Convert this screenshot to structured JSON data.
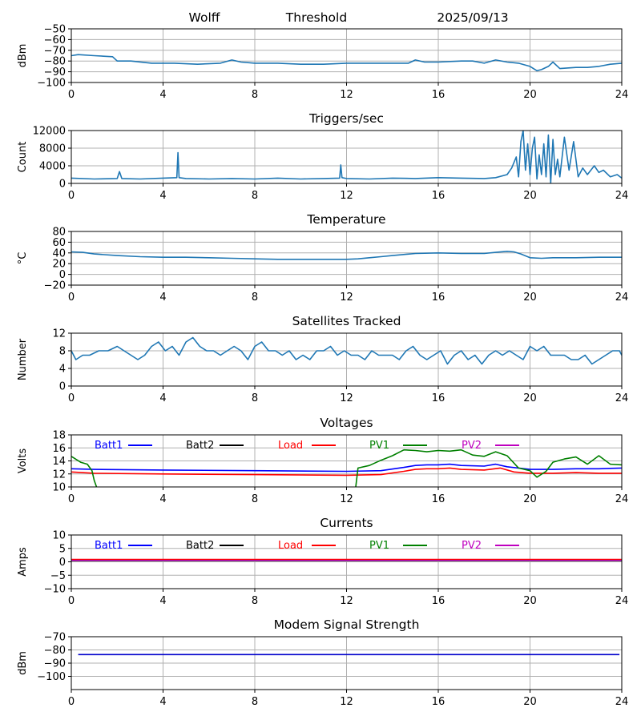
{
  "header": {
    "station": "Wolff",
    "mode": "Threshold",
    "date": "2025/09/13"
  },
  "colors": {
    "series_default": "#1f77b4",
    "batt1": "#0000ff",
    "batt2": "#000000",
    "load": "#ff0000",
    "pv1": "#008000",
    "pv2": "#bf00bf",
    "modem": "#0000cc",
    "grid": "#b0b0b0"
  },
  "chart_data": [
    {
      "id": "threshold",
      "type": "line",
      "title": "",
      "ylabel": "dBm",
      "xlim": [
        0,
        24
      ],
      "ylim": [
        -100,
        -50
      ],
      "xticks": [
        0,
        4,
        8,
        12,
        16,
        20,
        24
      ],
      "yticks": [
        -50,
        -60,
        -70,
        -80,
        -90,
        -100
      ],
      "yticklabels": [
        "−50",
        "−60",
        "−70",
        "−80",
        "−90",
        "−100"
      ],
      "series": [
        {
          "color": "#1f77b4",
          "x": [
            0,
            0.3,
            1,
            1.8,
            2.0,
            2.6,
            3.5,
            4.5,
            5.5,
            6.5,
            7.0,
            7.4,
            8.0,
            9.0,
            10.0,
            11.0,
            12.0,
            13.0,
            14.0,
            14.7,
            15.0,
            15.4,
            16.0,
            17.0,
            17.5,
            18.0,
            18.5,
            19.0,
            19.5,
            20.0,
            20.3,
            20.5,
            20.8,
            21.0,
            21.3,
            22.0,
            22.5,
            23.0,
            23.5,
            24.0
          ],
          "y": [
            -75,
            -74,
            -75,
            -76,
            -80,
            -80,
            -82,
            -82,
            -83,
            -82,
            -79,
            -81,
            -82,
            -82,
            -83,
            -83,
            -82,
            -82,
            -82,
            -82,
            -79,
            -81,
            -81,
            -80,
            -80,
            -82,
            -79,
            -81,
            -82,
            -85,
            -89,
            -88,
            -85,
            -81,
            -87,
            -86,
            -86,
            -85,
            -83,
            -82
          ]
        }
      ]
    },
    {
      "id": "triggers",
      "type": "line",
      "title": "Triggers/sec",
      "ylabel": "Count",
      "xlim": [
        0,
        24
      ],
      "ylim": [
        0,
        12000
      ],
      "xticks": [
        0,
        4,
        8,
        12,
        16,
        20,
        24
      ],
      "yticks": [
        0,
        4000,
        8000,
        12000
      ],
      "series": [
        {
          "color": "#1f77b4",
          "x": [
            0,
            1,
            2,
            2.1,
            2.2,
            3,
            4,
            4.6,
            4.65,
            4.7,
            5,
            6,
            7,
            8,
            9,
            10,
            11,
            11.7,
            11.75,
            11.8,
            12,
            13,
            14,
            15,
            16,
            17,
            18,
            18.5,
            19,
            19.2,
            19.4,
            19.5,
            19.6,
            19.7,
            19.8,
            19.9,
            20.0,
            20.1,
            20.2,
            20.3,
            20.4,
            20.5,
            20.6,
            20.7,
            20.8,
            20.9,
            21.0,
            21.1,
            21.2,
            21.3,
            21.5,
            21.7,
            21.9,
            22.1,
            22.3,
            22.5,
            22.8,
            23.0,
            23.2,
            23.5,
            23.8,
            24
          ],
          "y": [
            1200,
            1000,
            1100,
            2700,
            1100,
            1000,
            1200,
            1300,
            7000,
            1300,
            1100,
            1000,
            1100,
            1000,
            1200,
            1000,
            1100,
            1200,
            4200,
            1300,
            1100,
            1000,
            1200,
            1100,
            1300,
            1200,
            1100,
            1300,
            2000,
            3500,
            6000,
            1500,
            9500,
            12000,
            3000,
            9000,
            2000,
            8000,
            10500,
            1000,
            6500,
            2000,
            9000,
            1500,
            11000,
            0,
            10000,
            2000,
            5500,
            1500,
            10500,
            3000,
            9500,
            1500,
            3500,
            2000,
            4000,
            2500,
            3000,
            1500,
            2000,
            1200
          ]
        }
      ]
    },
    {
      "id": "temperature",
      "type": "line",
      "title": "Temperature",
      "ylabel": "°C",
      "xlim": [
        0,
        24
      ],
      "ylim": [
        -20,
        80
      ],
      "xticks": [
        0,
        4,
        8,
        12,
        16,
        20,
        24
      ],
      "yticks": [
        -20,
        0,
        20,
        40,
        60,
        80
      ],
      "yticklabels": [
        "−20",
        "0",
        "20",
        "40",
        "60",
        "80"
      ],
      "series": [
        {
          "color": "#1f77b4",
          "x": [
            0,
            0.5,
            1,
            2,
            3,
            4,
            5,
            6,
            7,
            8,
            9,
            10,
            11,
            12,
            12.5,
            13,
            13.5,
            14,
            15,
            16,
            17,
            18,
            18.5,
            19,
            19.3,
            19.6,
            20,
            20.5,
            21,
            22,
            23,
            24
          ],
          "y": [
            42,
            41,
            38,
            35,
            33,
            32,
            32,
            31,
            30,
            29,
            28,
            28,
            28,
            28,
            29,
            31,
            33,
            35,
            39,
            40,
            39,
            39,
            41,
            43,
            42,
            38,
            31,
            30,
            31,
            31,
            32,
            32
          ]
        }
      ]
    },
    {
      "id": "satellites",
      "type": "line",
      "title": "Satellites Tracked",
      "ylabel": "Number",
      "xlim": [
        0,
        24
      ],
      "ylim": [
        0,
        12
      ],
      "xticks": [
        0,
        4,
        8,
        12,
        16,
        20,
        24
      ],
      "yticks": [
        0,
        4,
        8,
        12
      ],
      "series": [
        {
          "color": "#1f77b4",
          "x": [
            0,
            0.2,
            0.5,
            0.8,
            1.2,
            1.6,
            2.0,
            2.3,
            2.6,
            2.9,
            3.2,
            3.5,
            3.8,
            4.1,
            4.4,
            4.7,
            5.0,
            5.3,
            5.6,
            5.9,
            6.2,
            6.5,
            6.8,
            7.1,
            7.4,
            7.7,
            8.0,
            8.3,
            8.6,
            8.9,
            9.2,
            9.5,
            9.8,
            10.1,
            10.4,
            10.7,
            11.0,
            11.3,
            11.6,
            11.9,
            12.2,
            12.5,
            12.8,
            13.1,
            13.4,
            13.7,
            14.0,
            14.3,
            14.6,
            14.9,
            15.2,
            15.5,
            15.8,
            16.1,
            16.4,
            16.7,
            17.0,
            17.3,
            17.6,
            17.9,
            18.2,
            18.5,
            18.8,
            19.1,
            19.4,
            19.7,
            20.0,
            20.3,
            20.6,
            20.9,
            21.2,
            21.5,
            21.8,
            22.1,
            22.4,
            22.7,
            23.0,
            23.3,
            23.6,
            23.9,
            24
          ],
          "y": [
            8,
            6,
            7,
            7,
            8,
            8,
            9,
            8,
            7,
            6,
            7,
            9,
            10,
            8,
            9,
            7,
            10,
            11,
            9,
            8,
            8,
            7,
            8,
            9,
            8,
            6,
            9,
            10,
            8,
            8,
            7,
            8,
            6,
            7,
            6,
            8,
            8,
            9,
            7,
            8,
            7,
            7,
            6,
            8,
            7,
            7,
            7,
            6,
            8,
            9,
            7,
            6,
            7,
            8,
            5,
            7,
            8,
            6,
            7,
            5,
            7,
            8,
            7,
            8,
            7,
            6,
            9,
            8,
            9,
            7,
            7,
            7,
            6,
            6,
            7,
            5,
            6,
            7,
            8,
            8,
            7
          ]
        }
      ]
    },
    {
      "id": "voltages",
      "type": "line",
      "title": "Voltages",
      "ylabel": "Volts",
      "xlim": [
        0,
        24
      ],
      "ylim": [
        10,
        18
      ],
      "xticks": [
        0,
        4,
        8,
        12,
        16,
        20,
        24
      ],
      "yticks": [
        10,
        12,
        14,
        16,
        18
      ],
      "series": [
        {
          "name": "Batt1",
          "color": "#0000ff",
          "x": [
            0,
            1,
            4,
            8,
            12,
            13.5,
            14.5,
            15,
            15.5,
            16,
            16.5,
            17,
            18,
            18.5,
            19,
            20,
            21,
            22,
            23,
            24
          ],
          "y": [
            12.8,
            12.7,
            12.6,
            12.5,
            12.4,
            12.5,
            13.0,
            13.3,
            13.4,
            13.4,
            13.5,
            13.3,
            13.2,
            13.5,
            13.1,
            12.7,
            12.7,
            12.8,
            12.8,
            12.9
          ]
        },
        {
          "name": "Batt2",
          "color": "#000000",
          "x": [],
          "y": []
        },
        {
          "name": "Load",
          "color": "#ff0000",
          "x": [
            0,
            1,
            4,
            8,
            12,
            13.5,
            14.5,
            15,
            15.5,
            16,
            16.5,
            17,
            18,
            18.7,
            19.3,
            20,
            21,
            22,
            23,
            24
          ],
          "y": [
            12.3,
            12.1,
            12.0,
            11.9,
            11.8,
            11.9,
            12.4,
            12.7,
            12.8,
            12.8,
            12.9,
            12.7,
            12.6,
            12.9,
            12.3,
            12.1,
            12.1,
            12.2,
            12.1,
            12.1
          ]
        },
        {
          "name": "PV1",
          "color": "#008000",
          "x": [
            0,
            0.4,
            0.7,
            0.9,
            1.0,
            1.1
          ],
          "y": [
            14.7,
            13.8,
            13.5,
            12.5,
            11.0,
            10.0
          ],
          "x2": [
            12.4,
            12.5,
            13.0,
            13.5,
            14.0,
            14.5,
            15.0,
            15.5,
            16.0,
            16.5,
            17.0,
            17.5,
            18.0,
            18.5,
            19.0,
            19.5,
            20.0,
            20.3,
            20.7,
            21.0,
            21.5,
            22.0,
            22.5,
            23.0,
            23.5,
            24.0
          ],
          "y2": [
            10.0,
            12.9,
            13.3,
            14.1,
            14.8,
            15.7,
            15.6,
            15.4,
            15.6,
            15.5,
            15.7,
            14.9,
            14.7,
            15.4,
            14.8,
            12.9,
            12.5,
            11.5,
            12.4,
            13.8,
            14.3,
            14.6,
            13.5,
            14.8,
            13.5,
            13.4
          ]
        },
        {
          "name": "PV2",
          "color": "#bf00bf",
          "x": [],
          "y": []
        }
      ]
    },
    {
      "id": "currents",
      "type": "line",
      "title": "Currents",
      "ylabel": "Amps",
      "xlim": [
        0,
        24
      ],
      "ylim": [
        -10,
        10
      ],
      "xticks": [
        0,
        4,
        8,
        12,
        16,
        20,
        24
      ],
      "yticks": [
        -10,
        -5,
        0,
        5,
        10
      ],
      "yticklabels": [
        "−10",
        "−5",
        "0",
        "5",
        "10"
      ],
      "series": [
        {
          "name": "Batt1",
          "color": "#0000ff",
          "x": [
            0,
            24
          ],
          "y": [
            0.6,
            0.6
          ]
        },
        {
          "name": "Batt2",
          "color": "#000000",
          "x": [],
          "y": []
        },
        {
          "name": "Load",
          "color": "#ff0000",
          "x": [
            0,
            24
          ],
          "y": [
            0.9,
            0.9
          ]
        },
        {
          "name": "PV1",
          "color": "#008000",
          "x": [
            0,
            24
          ],
          "y": [
            0.4,
            0.4
          ]
        },
        {
          "name": "PV2",
          "color": "#bf00bf",
          "x": [
            0,
            24
          ],
          "y": [
            0.5,
            0.5
          ]
        }
      ]
    },
    {
      "id": "modem",
      "type": "line",
      "title": "Modem Signal Strength",
      "ylabel": "dBm",
      "xlim": [
        0,
        24
      ],
      "ylim": [
        -110,
        -70
      ],
      "xticks": [
        0,
        4,
        8,
        12,
        16,
        20,
        24
      ],
      "yticks": [
        -70,
        -80,
        -90,
        -100
      ],
      "yticklabels": [
        "−70",
        "−80",
        "−90",
        "−100"
      ],
      "series": [
        {
          "color": "#0000cc",
          "x": [
            0.3,
            23.9
          ],
          "y": [
            -83.5,
            -83.5
          ]
        }
      ]
    }
  ]
}
